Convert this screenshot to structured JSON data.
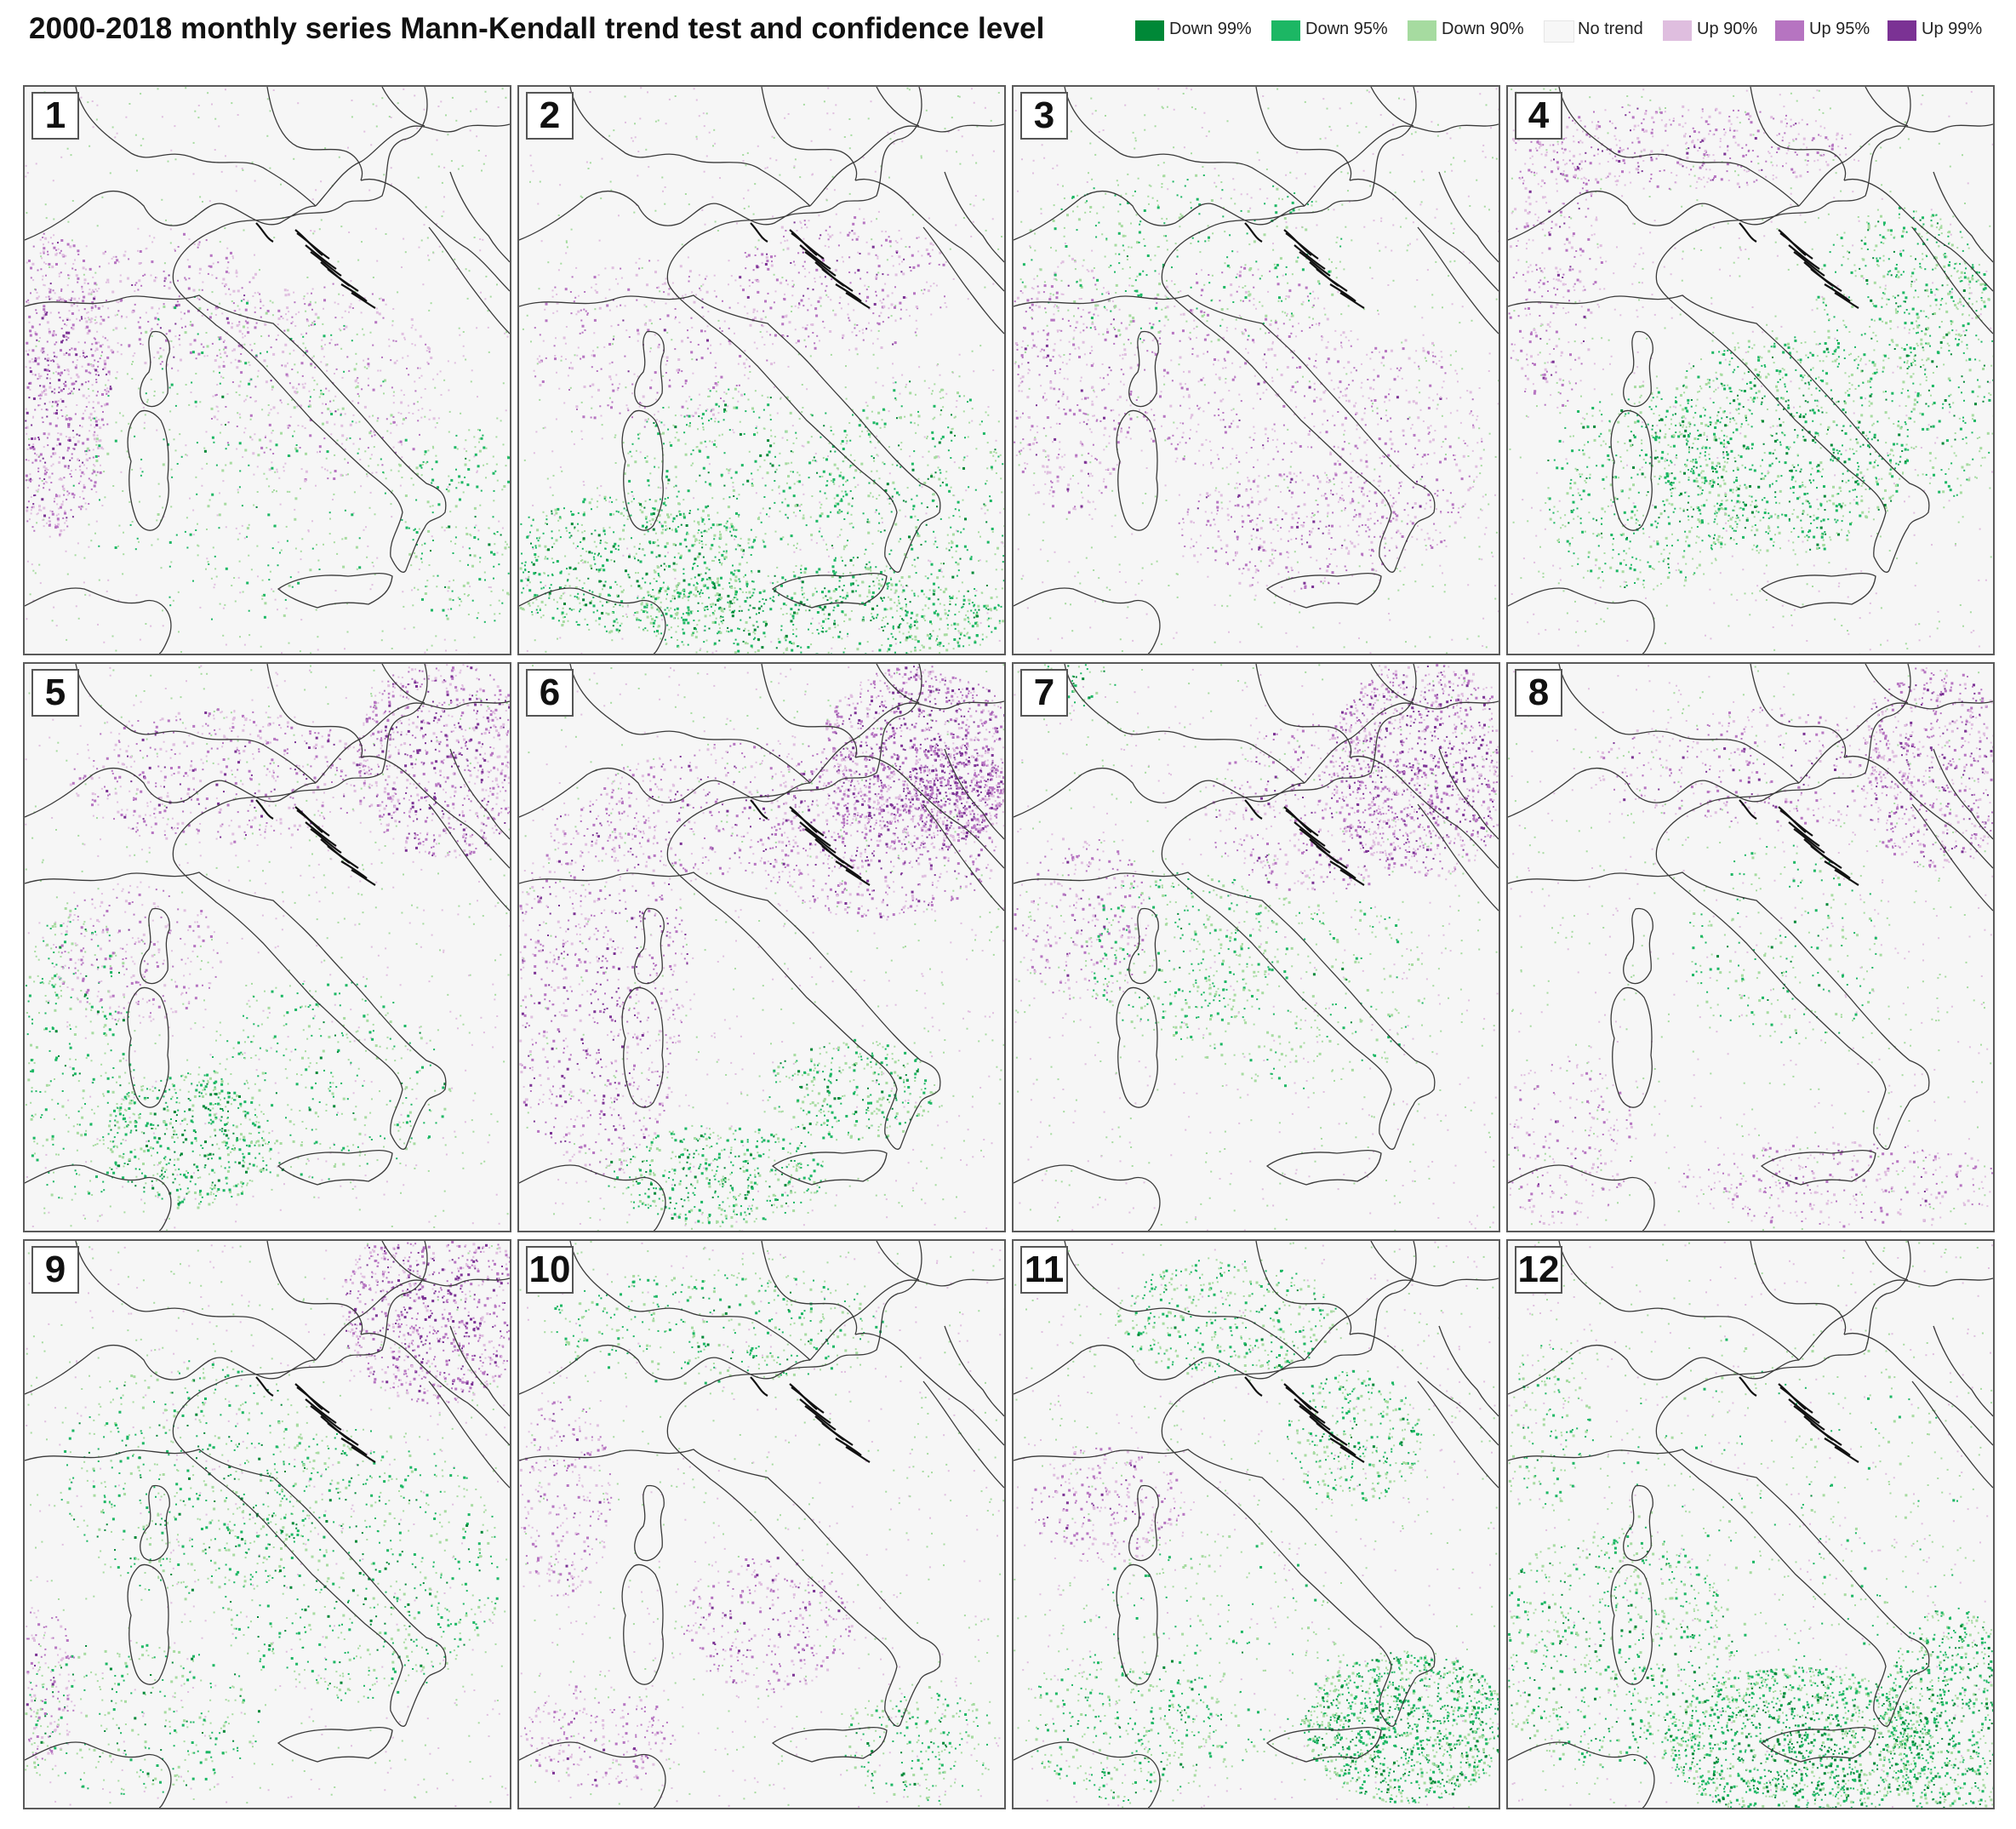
{
  "title": "2000-2018 monthly series Mann-Kendall trend test and confidence level",
  "legend": [
    {
      "label": "Down 99%",
      "color": "#008837"
    },
    {
      "label": "Down 95%",
      "color": "#1cb764"
    },
    {
      "label": "Down 90%",
      "color": "#a6dba0"
    },
    {
      "label": "No trend",
      "color": "#f7f7f7"
    },
    {
      "label": "Up 90%",
      "color": "#dfbedf"
    },
    {
      "label": "Up 95%",
      "color": "#b674c1"
    },
    {
      "label": "Up 99%",
      "color": "#7b3294"
    }
  ],
  "map": {
    "background_color": "#f6f6f6",
    "border_color": "#555555",
    "panels": [
      {
        "label": "1",
        "month": 1
      },
      {
        "label": "2",
        "month": 2
      },
      {
        "label": "3",
        "month": 3
      },
      {
        "label": "4",
        "month": 4
      },
      {
        "label": "5",
        "month": 5
      },
      {
        "label": "6",
        "month": 6
      },
      {
        "label": "7",
        "month": 7
      },
      {
        "label": "8",
        "month": 8
      },
      {
        "label": "9",
        "month": 9
      },
      {
        "label": "10",
        "month": 10
      },
      {
        "label": "11",
        "month": 11
      },
      {
        "label": "12",
        "month": 12
      }
    ]
  }
}
